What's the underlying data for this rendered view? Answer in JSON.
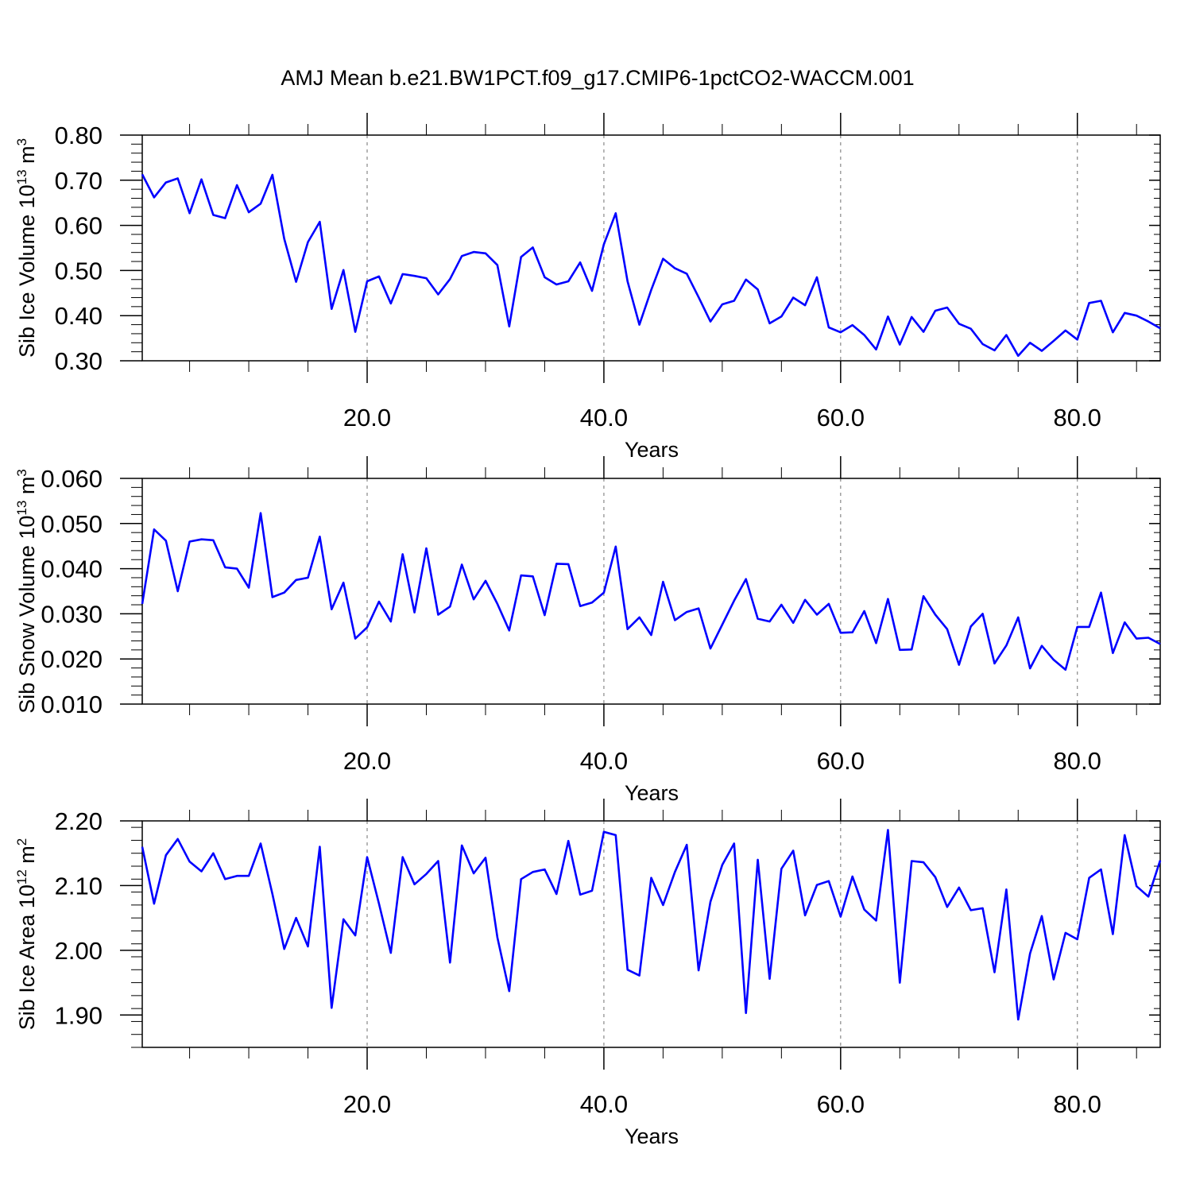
{
  "title": "AMJ Mean b.e21.BW1PCT.f09_g17.CMIP6-1pctCO2-WACCM.001",
  "chart_data": [
    {
      "type": "line",
      "title": "AMJ Mean b.e21.BW1PCT.f09_g17.CMIP6-1pctCO2-WACCM.001",
      "xlabel": "Years",
      "ylabel_main": "Sib Ice Volume 10",
      "ylabel_sup": "13",
      "ylabel_unit": " m",
      "ylabel_unit_sup": "3",
      "xlim": [
        1,
        87
      ],
      "ylim": [
        0.3,
        0.8
      ],
      "yticks": [
        0.3,
        0.4,
        0.5,
        0.6,
        0.7,
        0.8
      ],
      "ytick_labels": [
        "0.30",
        "0.40",
        "0.50",
        "0.60",
        "0.70",
        "0.80"
      ],
      "xticks": [
        20,
        40,
        60,
        80
      ],
      "xtick_labels": [
        "20.0",
        "40.0",
        "60.0",
        "80.0"
      ],
      "grid": "vertical dashed at major x ticks",
      "color": "#0000ff",
      "x_start": 1,
      "values": [
        0.713,
        0.662,
        0.695,
        0.704,
        0.627,
        0.702,
        0.623,
        0.616,
        0.689,
        0.629,
        0.648,
        0.712,
        0.57,
        0.475,
        0.563,
        0.608,
        0.415,
        0.501,
        0.364,
        0.476,
        0.487,
        0.427,
        0.492,
        0.488,
        0.483,
        0.447,
        0.481,
        0.532,
        0.541,
        0.538,
        0.512,
        0.376,
        0.53,
        0.551,
        0.485,
        0.469,
        0.476,
        0.518,
        0.455,
        0.558,
        0.627,
        0.476,
        0.38,
        0.457,
        0.526,
        0.505,
        0.493,
        0.441,
        0.387,
        0.425,
        0.433,
        0.48,
        0.458,
        0.383,
        0.398,
        0.44,
        0.423,
        0.485,
        0.374,
        0.363,
        0.379,
        0.357,
        0.325,
        0.398,
        0.336,
        0.397,
        0.364,
        0.411,
        0.418,
        0.382,
        0.371,
        0.337,
        0.323,
        0.357,
        0.311,
        0.34,
        0.322,
        0.344,
        0.367,
        0.347,
        0.428,
        0.433,
        0.363,
        0.406,
        0.4,
        0.387,
        0.372
      ]
    },
    {
      "type": "line",
      "xlabel": "Years",
      "ylabel_main": "Sib Snow Volume 10",
      "ylabel_sup": "13",
      "ylabel_unit": " m",
      "ylabel_unit_sup": "3",
      "xlim": [
        1,
        87
      ],
      "ylim": [
        0.01,
        0.06
      ],
      "yticks": [
        0.01,
        0.02,
        0.03,
        0.04,
        0.05,
        0.06
      ],
      "ytick_labels": [
        "0.010",
        "0.020",
        "0.030",
        "0.040",
        "0.050",
        "0.060"
      ],
      "xticks": [
        20,
        40,
        60,
        80
      ],
      "xtick_labels": [
        "20.0",
        "40.0",
        "60.0",
        "80.0"
      ],
      "grid": "vertical dashed at major x ticks",
      "color": "#0000ff",
      "x_start": 1,
      "values": [
        0.0322,
        0.0487,
        0.0462,
        0.035,
        0.046,
        0.0465,
        0.0463,
        0.0403,
        0.04,
        0.0358,
        0.0523,
        0.0337,
        0.0347,
        0.0375,
        0.038,
        0.0471,
        0.031,
        0.0369,
        0.0245,
        0.027,
        0.0327,
        0.0283,
        0.0432,
        0.0303,
        0.0445,
        0.0298,
        0.0316,
        0.0409,
        0.0332,
        0.0373,
        0.0322,
        0.0263,
        0.0385,
        0.0383,
        0.0297,
        0.0411,
        0.041,
        0.0317,
        0.0325,
        0.0347,
        0.0449,
        0.0266,
        0.0292,
        0.0253,
        0.0371,
        0.0286,
        0.0304,
        0.0312,
        0.0223,
        0.0276,
        0.0329,
        0.0377,
        0.0289,
        0.0283,
        0.032,
        0.028,
        0.0331,
        0.0298,
        0.0322,
        0.0258,
        0.0259,
        0.0306,
        0.0235,
        0.0333,
        0.022,
        0.0221,
        0.0339,
        0.0298,
        0.0266,
        0.0187,
        0.0272,
        0.03,
        0.019,
        0.023,
        0.0292,
        0.0179,
        0.0229,
        0.0198,
        0.0176,
        0.0271,
        0.0271,
        0.0347,
        0.0213,
        0.0281,
        0.0245,
        0.0247,
        0.0233
      ]
    },
    {
      "type": "line",
      "xlabel": "Years",
      "ylabel_main": "Sib Ice Area 10",
      "ylabel_sup": "12",
      "ylabel_unit": " m",
      "ylabel_unit_sup": "2",
      "xlim": [
        1,
        87
      ],
      "ylim": [
        1.85,
        2.2
      ],
      "yticks": [
        1.9,
        2.0,
        2.1,
        2.2
      ],
      "ytick_labels": [
        "1.90",
        "2.00",
        "2.10",
        "2.20"
      ],
      "xticks": [
        20,
        40,
        60,
        80
      ],
      "xtick_labels": [
        "20.0",
        "40.0",
        "60.0",
        "80.0"
      ],
      "grid": "vertical dashed at major x ticks",
      "color": "#0000ff",
      "x_start": 1,
      "values": [
        2.16,
        2.072,
        2.147,
        2.172,
        2.137,
        2.122,
        2.15,
        2.11,
        2.115,
        2.115,
        2.165,
        2.087,
        2.002,
        2.05,
        2.006,
        2.16,
        1.911,
        2.048,
        2.023,
        2.144,
        2.072,
        1.996,
        2.144,
        2.102,
        2.118,
        2.138,
        1.981,
        2.162,
        2.119,
        2.143,
        2.02,
        1.937,
        2.11,
        2.121,
        2.125,
        2.087,
        2.169,
        2.086,
        2.092,
        2.183,
        2.178,
        1.97,
        1.961,
        2.112,
        2.07,
        2.121,
        2.163,
        1.969,
        2.075,
        2.132,
        2.165,
        1.903,
        2.14,
        1.956,
        2.126,
        2.154,
        2.054,
        2.101,
        2.107,
        2.052,
        2.114,
        2.063,
        2.046,
        2.186,
        1.95,
        2.138,
        2.136,
        2.113,
        2.067,
        2.097,
        2.062,
        2.065,
        1.966,
        2.094,
        1.893,
        1.995,
        2.053,
        1.955,
        2.027,
        2.017,
        2.112,
        2.125,
        2.025,
        2.178,
        2.099,
        2.083,
        2.139
      ]
    }
  ]
}
